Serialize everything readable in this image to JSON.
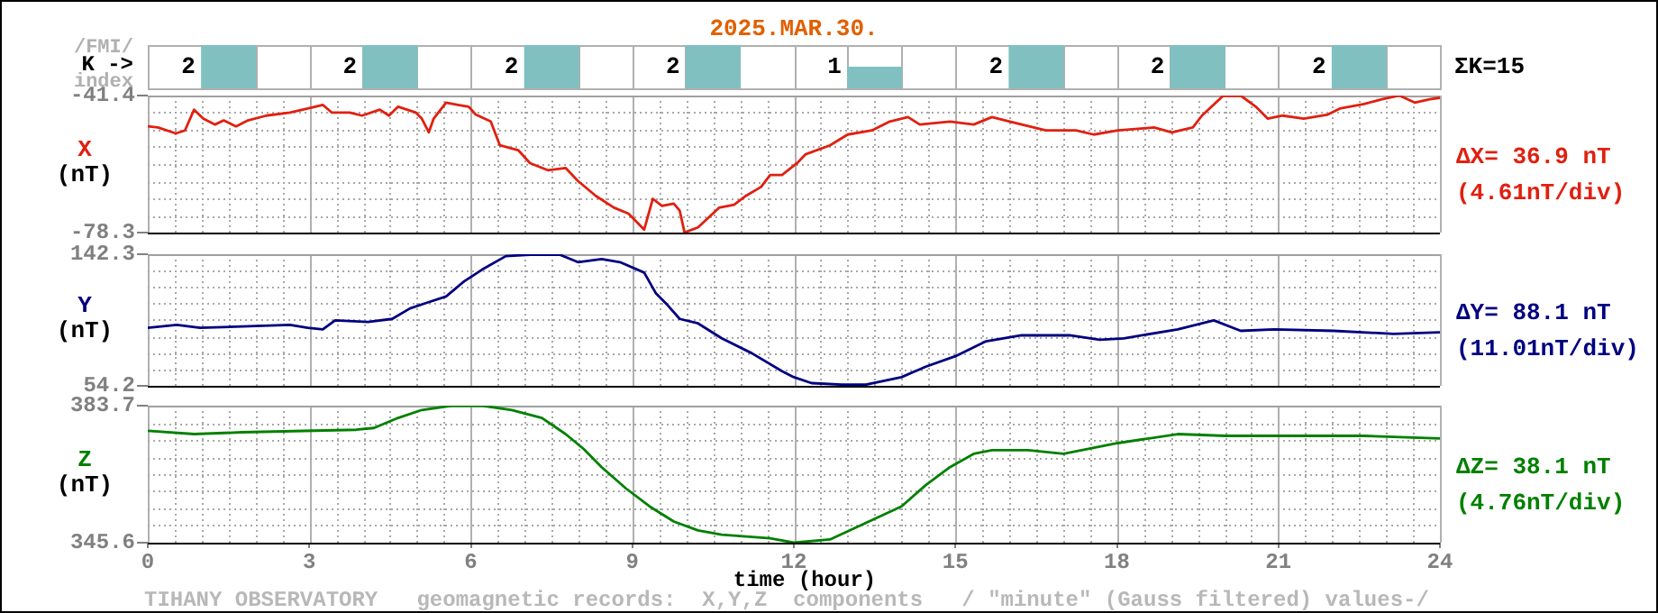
{
  "chart_data": [
    {
      "type": "bar",
      "title": "2025.MAR.30.",
      "ylabel": "K ->",
      "annotations": [
        "/FMI/",
        "index",
        "ΣK=15"
      ],
      "categories": [
        null,
        null,
        null,
        null,
        null,
        null,
        null,
        null
      ],
      "values": [
        2,
        2,
        2,
        2,
        1,
        2,
        2,
        2
      ],
      "color": "#80c0c0",
      "data_labels": true,
      "tick_labels": false
    },
    {
      "type": "line",
      "ylabel": "X (nT)",
      "annotations": [
        "ΔX= 36.9 nT",
        "(4.61nT/div)"
      ],
      "color": "#e02010",
      "x": [
        0,
        0.19,
        0.52,
        0.69,
        0.86,
        1.03,
        1.25,
        1.41,
        1.64,
        1.86,
        2.2,
        2.64,
        2.97,
        3.25,
        3.42,
        3.75,
        3.98,
        4.31,
        4.48,
        4.65,
        4.98,
        5.09,
        5.22,
        5.31,
        5.54,
        5.76,
        5.96,
        6.09,
        6.37,
        6.54,
        6.88,
        7.1,
        7.43,
        7.76,
        7.99,
        8.32,
        8.66,
        8.93,
        9.22,
        9.38,
        9.55,
        9.77,
        9.88,
        9.97,
        10.22,
        10.61,
        10.89,
        11.11,
        11.39,
        11.56,
        11.78,
        12.06,
        12.22,
        12.67,
        13.0,
        13.45,
        13.78,
        14.12,
        14.34,
        14.9,
        15.34,
        15.68,
        16.01,
        16.68,
        17.24,
        17.57,
        18.02,
        18.69,
        19.02,
        19.41,
        19.58,
        19.97,
        20.3,
        20.58,
        20.8,
        21.08,
        21.47,
        21.92,
        22.14,
        22.59,
        22.92,
        23.25,
        23.53,
        23.81,
        24
      ],
      "values": [
        -49.7,
        -50.0,
        -51.6,
        -50.8,
        -45.2,
        -47.6,
        -49.2,
        -48.1,
        -49.7,
        -48.1,
        -46.8,
        -46.0,
        -44.9,
        -43.9,
        -46.0,
        -46.0,
        -46.8,
        -45.2,
        -46.8,
        -44.4,
        -46.0,
        -47.6,
        -51.3,
        -47.6,
        -43.3,
        -43.9,
        -44.4,
        -46.5,
        -48.4,
        -54.8,
        -56.1,
        -59.6,
        -61.5,
        -60.9,
        -64.4,
        -68.4,
        -71.6,
        -73.2,
        -77.5,
        -69.2,
        -71.1,
        -70.5,
        -72.4,
        -78.3,
        -76.9,
        -71.6,
        -70.8,
        -68.4,
        -66.0,
        -62.8,
        -62.8,
        -59.6,
        -57.2,
        -54.8,
        -51.9,
        -50.8,
        -48.4,
        -47.2,
        -49.2,
        -48.4,
        -49.2,
        -47.2,
        -48.4,
        -50.8,
        -50.8,
        -51.9,
        -50.8,
        -50.0,
        -51.3,
        -50.0,
        -46.8,
        -41.5,
        -41.4,
        -44.4,
        -47.6,
        -46.8,
        -47.6,
        -46.5,
        -44.9,
        -43.7,
        -42.4,
        -41.4,
        -43.3,
        -42.4,
        -42.0
      ],
      "xlim": [
        0,
        24
      ],
      "xticks": [
        0,
        {
          "value": 0.5,
          "label": null
        },
        {
          "value": 1,
          "label": null
        },
        {
          "value": 1.5,
          "label": null
        },
        {
          "value": 2,
          "label": null
        },
        {
          "value": 2.5,
          "label": null
        },
        3,
        {
          "value": 3.5,
          "label": null
        },
        {
          "value": 4,
          "label": null
        },
        {
          "value": 4.5,
          "label": null
        },
        {
          "value": 5,
          "label": null
        },
        {
          "value": 5.5,
          "label": null
        },
        6,
        {
          "value": 6.5,
          "label": null
        },
        {
          "value": 7,
          "label": null
        },
        {
          "value": 7.5,
          "label": null
        },
        {
          "value": 8,
          "label": null
        },
        {
          "value": 8.5,
          "label": null
        },
        9,
        {
          "value": 9.5,
          "label": null
        },
        {
          "value": 10,
          "label": null
        },
        {
          "value": 10.5,
          "label": null
        },
        {
          "value": 11,
          "label": null
        },
        {
          "value": 11.5,
          "label": null
        },
        12,
        {
          "value": 12.5,
          "label": null
        },
        {
          "value": 13,
          "label": null
        },
        {
          "value": 13.5,
          "label": null
        },
        {
          "value": 14,
          "label": null
        },
        {
          "value": 14.5,
          "label": null
        },
        15,
        {
          "value": 15.5,
          "label": null
        },
        {
          "value": 16,
          "label": null
        },
        {
          "value": 16.5,
          "label": null
        },
        {
          "value": 17,
          "label": null
        },
        {
          "value": 17.5,
          "label": null
        },
        18,
        {
          "value": 18.5,
          "label": null
        },
        {
          "value": 19,
          "label": null
        },
        {
          "value": 19.5,
          "label": null
        },
        {
          "value": 20,
          "label": null
        },
        {
          "value": 20.5,
          "label": null
        },
        21,
        {
          "value": 21.5,
          "label": null
        },
        {
          "value": 22,
          "label": null
        },
        {
          "value": 22.5,
          "label": null
        },
        {
          "value": 23,
          "label": null
        },
        {
          "value": 23.5,
          "label": null
        },
        24
      ],
      "ylim": [
        -78.3,
        -41.4
      ],
      "yticks": [
        -78.3,
        {
          "value": -73.7,
          "label": null
        },
        {
          "value": -69.1,
          "label": null
        },
        {
          "value": -64.5,
          "label": null
        },
        {
          "value": -59.9,
          "label": null
        },
        {
          "value": -55.2,
          "label": null
        },
        {
          "value": -50.6,
          "label": null
        },
        {
          "value": -46.0,
          "label": null
        },
        -41.4
      ],
      "grid": true,
      "tick_labels": "y"
    },
    {
      "type": "line",
      "ylabel": "Y (nT)",
      "annotations": [
        "ΔY= 88.1 nT",
        "(11.01nT/div)"
      ],
      "color": "#000080",
      "x": [
        0,
        0.54,
        0.97,
        2.64,
        2.97,
        3.25,
        3.48,
        4.09,
        4.54,
        4.87,
        5.2,
        5.54,
        5.87,
        6.21,
        6.65,
        7.1,
        7.65,
        7.99,
        8.43,
        8.77,
        9.22,
        9.44,
        9.66,
        9.88,
        10.22,
        10.66,
        11.22,
        11.78,
        12.0,
        12.33,
        12.89,
        13.34,
        14.0,
        14.45,
        15.0,
        15.57,
        16.23,
        17.12,
        17.68,
        18.13,
        19.13,
        19.8,
        20.3,
        20.92,
        22.03,
        23.14,
        24
      ],
      "values": [
        93,
        95,
        93,
        95,
        93,
        92,
        98,
        97,
        99,
        106,
        110,
        114,
        124,
        132,
        141,
        142,
        142,
        137,
        139,
        137,
        130,
        116,
        108,
        99,
        96,
        86,
        76,
        64,
        60,
        56,
        55,
        55,
        60,
        67,
        74,
        84,
        88,
        88,
        85,
        86,
        92,
        98,
        91,
        92,
        91,
        89,
        90
      ],
      "xlim": [
        0,
        24
      ],
      "xticks": [
        0,
        {
          "value": 0.5,
          "label": null
        },
        {
          "value": 1,
          "label": null
        },
        {
          "value": 1.5,
          "label": null
        },
        {
          "value": 2,
          "label": null
        },
        {
          "value": 2.5,
          "label": null
        },
        3,
        {
          "value": 3.5,
          "label": null
        },
        {
          "value": 4,
          "label": null
        },
        {
          "value": 4.5,
          "label": null
        },
        {
          "value": 5,
          "label": null
        },
        {
          "value": 5.5,
          "label": null
        },
        6,
        {
          "value": 6.5,
          "label": null
        },
        {
          "value": 7,
          "label": null
        },
        {
          "value": 7.5,
          "label": null
        },
        {
          "value": 8,
          "label": null
        },
        {
          "value": 8.5,
          "label": null
        },
        9,
        {
          "value": 9.5,
          "label": null
        },
        {
          "value": 10,
          "label": null
        },
        {
          "value": 10.5,
          "label": null
        },
        {
          "value": 11,
          "label": null
        },
        {
          "value": 11.5,
          "label": null
        },
        12,
        {
          "value": 12.5,
          "label": null
        },
        {
          "value": 13,
          "label": null
        },
        {
          "value": 13.5,
          "label": null
        },
        {
          "value": 14,
          "label": null
        },
        {
          "value": 14.5,
          "label": null
        },
        15,
        {
          "value": 15.5,
          "label": null
        },
        {
          "value": 16,
          "label": null
        },
        {
          "value": 16.5,
          "label": null
        },
        {
          "value": 17,
          "label": null
        },
        {
          "value": 17.5,
          "label": null
        },
        18,
        {
          "value": 18.5,
          "label": null
        },
        {
          "value": 19,
          "label": null
        },
        {
          "value": 19.5,
          "label": null
        },
        {
          "value": 20,
          "label": null
        },
        {
          "value": 20.5,
          "label": null
        },
        21,
        {
          "value": 21.5,
          "label": null
        },
        {
          "value": 22,
          "label": null
        },
        {
          "value": 22.5,
          "label": null
        },
        {
          "value": 23,
          "label": null
        },
        {
          "value": 23.5,
          "label": null
        },
        24
      ],
      "ylim": [
        54.2,
        142.3
      ],
      "yticks": [
        54.2,
        {
          "value": 65.2,
          "label": null
        },
        {
          "value": 76.2,
          "label": null
        },
        {
          "value": 87.2,
          "label": null
        },
        {
          "value": 98.3,
          "label": null
        },
        {
          "value": 109.3,
          "label": null
        },
        {
          "value": 120.3,
          "label": null
        },
        {
          "value": 131.3,
          "label": null
        },
        142.3
      ],
      "grid": true,
      "tick_labels": "y"
    },
    {
      "type": "line",
      "ylabel": "Z (nT)",
      "xlabel": "time (hour)",
      "annotations": [
        "ΔZ= 38.1 nT",
        "(4.76nT/div)",
        "TIHANY OBSERVATORY   geomagnetic records:  X,Y,Z  components   / \"minute\" (Gauss filtered) values-/"
      ],
      "color": "#008000",
      "x": [
        0,
        0.86,
        1.75,
        3.87,
        4.2,
        4.65,
        5.09,
        5.65,
        6.21,
        6.76,
        7.32,
        7.76,
        8.1,
        8.43,
        8.88,
        9.32,
        9.77,
        10.22,
        10.66,
        11.56,
        12.0,
        12.67,
        13.34,
        14.0,
        14.45,
        14.9,
        15.34,
        15.68,
        16.35,
        17.01,
        18.02,
        19.13,
        20.02,
        22.59,
        24
      ],
      "values": [
        376.7,
        375.8,
        376.3,
        377.0,
        377.5,
        380.3,
        382.5,
        383.7,
        383.7,
        382.5,
        380.3,
        375.8,
        371.6,
        366.6,
        360.7,
        355.7,
        351.5,
        349.0,
        347.8,
        346.8,
        345.6,
        346.5,
        351.1,
        355.7,
        361.6,
        366.6,
        370.3,
        371.3,
        371.3,
        370.3,
        373.3,
        375.8,
        375.3,
        375.3,
        374.6
      ],
      "xlim": [
        0,
        24
      ],
      "xticks": [
        0,
        {
          "value": 0.5,
          "label": null
        },
        {
          "value": 1,
          "label": null
        },
        {
          "value": 1.5,
          "label": null
        },
        {
          "value": 2,
          "label": null
        },
        {
          "value": 2.5,
          "label": null
        },
        3,
        {
          "value": 3.5,
          "label": null
        },
        {
          "value": 4,
          "label": null
        },
        {
          "value": 4.5,
          "label": null
        },
        {
          "value": 5,
          "label": null
        },
        {
          "value": 5.5,
          "label": null
        },
        6,
        {
          "value": 6.5,
          "label": null
        },
        {
          "value": 7,
          "label": null
        },
        {
          "value": 7.5,
          "label": null
        },
        {
          "value": 8,
          "label": null
        },
        {
          "value": 8.5,
          "label": null
        },
        9,
        {
          "value": 9.5,
          "label": null
        },
        {
          "value": 10,
          "label": null
        },
        {
          "value": 10.5,
          "label": null
        },
        {
          "value": 11,
          "label": null
        },
        {
          "value": 11.5,
          "label": null
        },
        12,
        {
          "value": 12.5,
          "label": null
        },
        {
          "value": 13,
          "label": null
        },
        {
          "value": 13.5,
          "label": null
        },
        {
          "value": 14,
          "label": null
        },
        {
          "value": 14.5,
          "label": null
        },
        15,
        {
          "value": 15.5,
          "label": null
        },
        {
          "value": 16,
          "label": null
        },
        {
          "value": 16.5,
          "label": null
        },
        {
          "value": 17,
          "label": null
        },
        {
          "value": 17.5,
          "label": null
        },
        18,
        {
          "value": 18.5,
          "label": null
        },
        {
          "value": 19,
          "label": null
        },
        {
          "value": 19.5,
          "label": null
        },
        {
          "value": 20,
          "label": null
        },
        {
          "value": 20.5,
          "label": null
        },
        21,
        {
          "value": 21.5,
          "label": null
        },
        {
          "value": 22,
          "label": null
        },
        {
          "value": 22.5,
          "label": null
        },
        {
          "value": 23,
          "label": null
        },
        {
          "value": 23.5,
          "label": null
        },
        24
      ],
      "ylim": [
        345.6,
        383.7
      ],
      "yticks": [
        345.6,
        {
          "value": 350.4,
          "label": null
        },
        {
          "value": 355.1,
          "label": null
        },
        {
          "value": 359.9,
          "label": null
        },
        {
          "value": 364.7,
          "label": null
        },
        {
          "value": 369.4,
          "label": null
        },
        {
          "value": 374.2,
          "label": null
        },
        {
          "value": 378.9,
          "label": null
        },
        383.7
      ],
      "grid": true
    }
  ]
}
